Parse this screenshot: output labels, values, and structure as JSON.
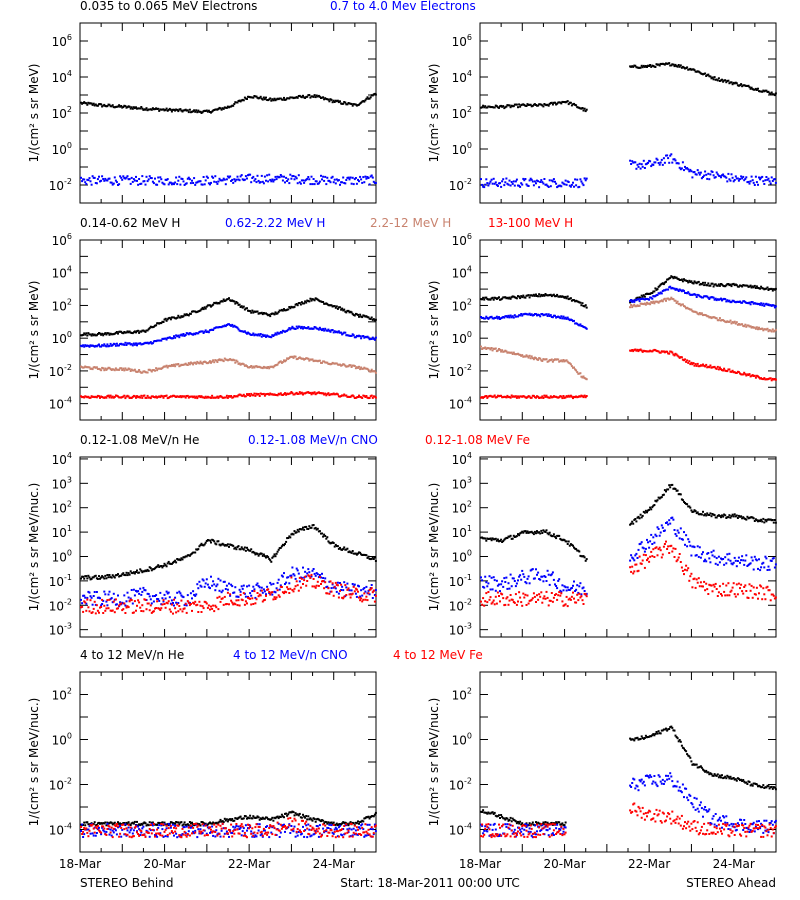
{
  "colors": {
    "c0": "#000000",
    "c1": "#0000ff",
    "c2": "#c8826e",
    "c3": "#ff0000"
  },
  "footer": {
    "left": "STEREO Behind",
    "center": "Start: 18-Mar-2011 00:00 UTC",
    "right": "STEREO Ahead"
  },
  "x_tick_labels": [
    "18-Mar",
    "20-Mar",
    "22-Mar",
    "24-Mar"
  ],
  "chart_data": [
    {
      "type": "scatter",
      "row": 1,
      "yscale": "log",
      "ylim": [
        0.001,
        10000000.0
      ],
      "ylabel": "1/(cm² s sr MeV)",
      "yticks": [
        "10^6",
        "10^4",
        "10^2",
        "10^0",
        "10^-2"
      ],
      "legend": [
        {
          "text": "0.035 to 0.065 MeV Electrons",
          "color": "c0"
        },
        {
          "text": "0.7 to 4.0 Mev Electrons",
          "color": "c1"
        }
      ],
      "x": [
        "2011-03-18 00:00",
        "2011-03-18 12:00",
        "2011-03-19 00:00",
        "2011-03-19 12:00",
        "2011-03-20 00:00",
        "2011-03-20 12:00",
        "2011-03-21 00:00",
        "2011-03-21 12:00",
        "2011-03-22 00:00",
        "2011-03-22 12:00",
        "2011-03-23 00:00",
        "2011-03-23 12:00",
        "2011-03-24 00:00",
        "2011-03-24 12:00",
        "2011-03-25 00:00"
      ],
      "panels": [
        {
          "spacecraft": "Behind",
          "series": [
            {
              "legend": 0,
              "values": [
                400,
                300,
                250,
                200,
                170,
                150,
                130,
                250,
                1000,
                600,
                800,
                1000,
                500,
                300,
                1500
              ]
            },
            {
              "legend": 1,
              "values": [
                0.02,
                0.02,
                0.02,
                0.02,
                0.02,
                0.02,
                0.02,
                0.022,
                0.025,
                0.025,
                0.025,
                0.022,
                0.02,
                0.02,
                0.022
              ]
            }
          ]
        },
        {
          "spacecraft": "Ahead",
          "series": [
            {
              "legend": 0,
              "values": [
                250,
                250,
                300,
                300,
                500,
                150,
                null,
                40000,
                45000,
                60000,
                30000,
                10000,
                5000,
                2500,
                1200
              ]
            },
            {
              "legend": 1,
              "values": [
                0.015,
                0.015,
                0.015,
                0.015,
                0.015,
                0.015,
                null,
                0.15,
                0.15,
                0.35,
                0.05,
                0.04,
                0.025,
                0.02,
                0.02
              ]
            }
          ]
        }
      ]
    },
    {
      "type": "scatter",
      "row": 2,
      "yscale": "log",
      "ylim": [
        1e-05,
        1000000.0
      ],
      "ylabel": "1/(cm² s sr MeV)",
      "yticks": [
        "10^6",
        "10^4",
        "10^2",
        "10^0",
        "10^-2",
        "10^-4"
      ],
      "legend": [
        {
          "text": "0.14-0.62 MeV H",
          "color": "c0"
        },
        {
          "text": "0.62-2.22 MeV H",
          "color": "c1"
        },
        {
          "text": "2.2-12 MeV H",
          "color": "c2"
        },
        {
          "text": "13-100 MeV H",
          "color": "c3"
        }
      ],
      "x": [
        "2011-03-18 00:00",
        "2011-03-18 12:00",
        "2011-03-19 00:00",
        "2011-03-19 12:00",
        "2011-03-20 00:00",
        "2011-03-20 12:00",
        "2011-03-21 00:00",
        "2011-03-21 12:00",
        "2011-03-22 00:00",
        "2011-03-22 12:00",
        "2011-03-23 00:00",
        "2011-03-23 12:00",
        "2011-03-24 00:00",
        "2011-03-24 12:00",
        "2011-03-25 00:00"
      ],
      "panels": [
        {
          "spacecraft": "Behind",
          "series": [
            {
              "legend": 0,
              "values": [
                2,
                2,
                2.5,
                3,
                15,
                30,
                100,
                300,
                50,
                30,
                100,
                300,
                100,
                30,
                15
              ]
            },
            {
              "legend": 1,
              "values": [
                0.4,
                0.4,
                0.5,
                0.5,
                1,
                2,
                3,
                8,
                2,
                1.5,
                5,
                5,
                3,
                1.5,
                1
              ]
            },
            {
              "legend": 2,
              "values": [
                0.02,
                0.015,
                0.015,
                0.01,
                0.02,
                0.03,
                0.04,
                0.06,
                0.02,
                0.02,
                0.08,
                0.05,
                0.03,
                0.02,
                0.01
              ]
            },
            {
              "legend": 3,
              "values": [
                0.0003,
                0.0003,
                0.0003,
                0.0003,
                0.0003,
                0.0003,
                0.0003,
                0.0003,
                0.0004,
                0.0004,
                0.0005,
                0.0005,
                0.0004,
                0.0003,
                0.0003
              ]
            }
          ]
        },
        {
          "spacecraft": "Ahead",
          "series": [
            {
              "legend": 0,
              "values": [
                300,
                300,
                400,
                500,
                400,
                100,
                null,
                200,
                600,
                6000,
                3000,
                2000,
                2000,
                1500,
                1000
              ]
            },
            {
              "legend": 1,
              "values": [
                20,
                20,
                30,
                30,
                20,
                5,
                null,
                200,
                300,
                1500,
                500,
                300,
                200,
                150,
                100
              ]
            },
            {
              "legend": 2,
              "values": [
                0.3,
                0.2,
                0.1,
                0.05,
                0.05,
                0.003,
                null,
                100,
                150,
                300,
                50,
                20,
                10,
                5,
                3
              ]
            },
            {
              "legend": 3,
              "values": [
                0.0003,
                0.0003,
                0.0003,
                0.0003,
                0.0003,
                0.0003,
                null,
                0.2,
                0.2,
                0.15,
                0.03,
                0.02,
                0.01,
                0.005,
                0.003
              ]
            }
          ]
        }
      ]
    },
    {
      "type": "scatter",
      "row": 3,
      "yscale": "log",
      "ylim": [
        0.0005,
        12000.0
      ],
      "ylabel": "1/(cm² s sr MeV/nuc.)",
      "yticks": [
        "10^4",
        "10^3",
        "10^2",
        "10^1",
        "10^0",
        "10^-1",
        "10^-2",
        "10^-3"
      ],
      "legend": [
        {
          "text": "0.12-1.08 MeV/n He",
          "color": "c0"
        },
        {
          "text": "0.12-1.08 MeV/n CNO",
          "color": "c1"
        },
        {
          "text": "0.12-1.08 MeV Fe",
          "color": "c3"
        }
      ],
      "x": [
        "2011-03-18 00:00",
        "2011-03-18 12:00",
        "2011-03-19 00:00",
        "2011-03-19 12:00",
        "2011-03-20 00:00",
        "2011-03-20 12:00",
        "2011-03-21 00:00",
        "2011-03-21 12:00",
        "2011-03-22 00:00",
        "2011-03-22 12:00",
        "2011-03-23 00:00",
        "2011-03-23 12:00",
        "2011-03-24 00:00",
        "2011-03-24 12:00",
        "2011-03-25 00:00"
      ],
      "panels": [
        {
          "spacecraft": "Behind",
          "series": [
            {
              "legend": 0,
              "values": [
                0.15,
                0.15,
                0.2,
                0.3,
                0.5,
                1,
                5,
                3,
                2,
                0.8,
                10,
                20,
                3,
                1.5,
                0.8
              ]
            },
            {
              "legend": 1,
              "values": [
                0.02,
                0.02,
                0.02,
                0.03,
                0.02,
                0.02,
                0.1,
                0.05,
                0.04,
                0.05,
                0.2,
                0.2,
                0.06,
                0.04,
                0.04
              ]
            },
            {
              "legend": 2,
              "values": [
                0.01,
                0.01,
                0.01,
                0.01,
                0.01,
                0.01,
                0.01,
                0.02,
                0.02,
                0.03,
                0.08,
                0.1,
                0.05,
                0.03,
                0.03
              ]
            }
          ]
        },
        {
          "spacecraft": "Ahead",
          "series": [
            {
              "legend": 0,
              "values": [
                6,
                5,
                10,
                12,
                5,
                0.8,
                null,
                20,
                100,
                1000,
                80,
                50,
                50,
                35,
                30
              ]
            },
            {
              "legend": 1,
              "values": [
                0.1,
                0.08,
                0.15,
                0.2,
                0.06,
                0.05,
                null,
                1,
                5,
                30,
                2,
                1,
                0.8,
                0.6,
                0.5
              ]
            },
            {
              "legend": 2,
              "values": [
                0.02,
                0.02,
                0.02,
                0.02,
                0.02,
                0.02,
                null,
                0.3,
                1,
                3,
                0.1,
                0.05,
                0.05,
                0.04,
                0.03
              ]
            }
          ]
        }
      ]
    },
    {
      "type": "scatter",
      "row": 4,
      "yscale": "log",
      "ylim": [
        1e-05,
        1000.0
      ],
      "ylabel": "1/(cm² s sr MeV/nuc.)",
      "yticks": [
        "10^2",
        "10^0",
        "10^-2",
        "10^-4"
      ],
      "legend": [
        {
          "text": "4 to 12 MeV/n He",
          "color": "c0"
        },
        {
          "text": "4 to 12 MeV/n CNO",
          "color": "c1"
        },
        {
          "text": "4 to 12 MeV Fe",
          "color": "c3"
        }
      ],
      "x": [
        "2011-03-18 00:00",
        "2011-03-18 12:00",
        "2011-03-19 00:00",
        "2011-03-19 12:00",
        "2011-03-20 00:00",
        "2011-03-20 12:00",
        "2011-03-21 00:00",
        "2011-03-21 12:00",
        "2011-03-22 00:00",
        "2011-03-22 12:00",
        "2011-03-23 00:00",
        "2011-03-23 12:00",
        "2011-03-24 00:00",
        "2011-03-24 12:00",
        "2011-03-25 00:00"
      ],
      "panels": [
        {
          "spacecraft": "Behind",
          "series": [
            {
              "legend": 0,
              "values": [
                0.0002,
                0.0002,
                0.0002,
                0.0002,
                0.0002,
                0.0002,
                0.0002,
                0.0003,
                0.0004,
                0.0003,
                0.0006,
                0.0003,
                0.0002,
                0.0002,
                0.0006
              ]
            },
            {
              "legend": 1,
              "values": [
                0.0001,
                0.0001,
                0.0001,
                0.0001,
                0.0001,
                0.0001,
                0.0001,
                0.0001,
                0.0001,
                0.0001,
                0.0001,
                0.0001,
                0.0001,
                0.0001,
                0.0001
              ]
            },
            {
              "legend": 2,
              "values": [
                0.0001,
                0.0001,
                0.0001,
                0.0001,
                0.0001,
                0.0001,
                0.0001,
                0.0001,
                0.0001,
                0.0001,
                0.0002,
                0.0001,
                0.0001,
                0.0001,
                0.0001
              ]
            }
          ]
        },
        {
          "spacecraft": "Ahead",
          "series": [
            {
              "legend": 0,
              "values": [
                0.0008,
                0.0004,
                0.0002,
                0.0002,
                0.0002,
                null,
                null,
                1,
                1.5,
                4,
                0.1,
                0.03,
                0.02,
                0.01,
                0.007
              ]
            },
            {
              "legend": 1,
              "values": [
                0.0001,
                0.0001,
                0.0001,
                0.0001,
                0.0001,
                null,
                null,
                0.01,
                0.015,
                0.02,
                0.002,
                0.0003,
                0.0002,
                0.00015,
                0.00015
              ]
            },
            {
              "legend": 2,
              "values": [
                0.0001,
                0.0001,
                0.0001,
                0.0001,
                0.0001,
                null,
                null,
                0.001,
                0.0005,
                0.0004,
                0.00015,
                0.0001,
                0.0001,
                0.0001,
                0.0001
              ]
            }
          ]
        }
      ]
    }
  ]
}
